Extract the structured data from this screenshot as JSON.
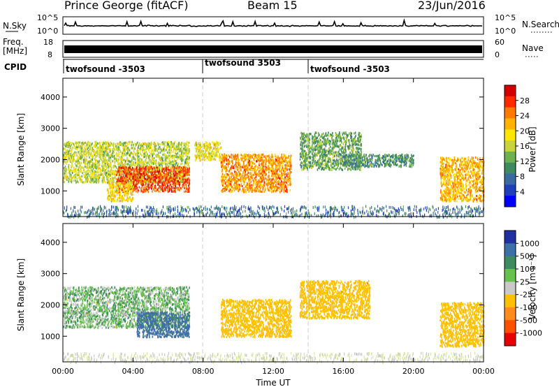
{
  "header": {
    "station": "Prince George (fitACF)",
    "beam": "Beam 15",
    "date": "23/Jun/2016"
  },
  "noise_panel": {
    "left_label": "N.Sky",
    "right_label": "N.Search",
    "left_ticks": [
      "10^5",
      "10^0"
    ],
    "right_ticks": [
      "10^5",
      "10^0"
    ]
  },
  "freq_panel": {
    "left_label_1": "Freq.",
    "left_label_2": "[MHz]",
    "right_label": "Nave",
    "left_ticks": [
      "18",
      "8"
    ],
    "right_ticks": [
      "60",
      "0"
    ]
  },
  "cpid_panel": {
    "label": "CPID",
    "segments": [
      {
        "start_hour": 0,
        "label": "twofsound -3503"
      },
      {
        "start_hour": 8,
        "label": "twofsound 3503"
      },
      {
        "start_hour": 14,
        "label": "twofsound -3503"
      }
    ]
  },
  "power_colorbar": {
    "label": "Power [dB]",
    "ticks": [
      "28",
      "24",
      "20",
      "16",
      "12",
      "8",
      "4"
    ],
    "colors": [
      "#d40000",
      "#ff2a00",
      "#ff7a00",
      "#ffb300",
      "#ffe600",
      "#c9d43c",
      "#6fb04f",
      "#3f8a5e",
      "#3a6aa0",
      "#2040b8",
      "#0000ff"
    ]
  },
  "velocity_colorbar": {
    "label": "Velocity [m s⁻¹]",
    "ticks": [
      "1000",
      "500",
      "100",
      "25",
      "-25",
      "-100",
      "-500",
      "-1000"
    ],
    "colors": [
      "#2030a0",
      "#3f6fa8",
      "#3f8a5e",
      "#66c24a",
      "#c9c9c9",
      "#ffc000",
      "#ff8a1e",
      "#ff5000",
      "#e80000"
    ]
  },
  "x_axis": {
    "label": "Time UT",
    "ticks": [
      "00:00",
      "04:00",
      "08:00",
      "12:00",
      "16:00",
      "20:00",
      "00:00"
    ]
  },
  "chart_data": [
    {
      "type": "heatmap",
      "name": "power",
      "ylabel": "Slant Range [km]",
      "xlabel": "Time UT",
      "xlim_hours": [
        0,
        24
      ],
      "ylim_km": [
        180,
        4600
      ],
      "yticks": [
        1000,
        2000,
        3000,
        4000
      ],
      "xticks": [
        "00:00",
        "04:00",
        "08:00",
        "12:00",
        "16:00",
        "20:00",
        "00:00"
      ],
      "colorbar_range_db": [
        0,
        32
      ],
      "features": [
        {
          "t_start": 0.0,
          "t_end": 7.2,
          "range_min_km": 1300,
          "range_max_km": 2600,
          "typical_db": 16
        },
        {
          "t_start": 3.0,
          "t_end": 7.2,
          "range_min_km": 1000,
          "range_max_km": 1800,
          "typical_db": 28
        },
        {
          "t_start": 2.5,
          "t_end": 4.0,
          "range_min_km": 700,
          "range_max_km": 1300,
          "typical_db": 20
        },
        {
          "t_start": 7.5,
          "t_end": 9.0,
          "range_min_km": 2000,
          "range_max_km": 2600,
          "typical_db": 18
        },
        {
          "t_start": 9.0,
          "t_end": 13.0,
          "range_min_km": 1000,
          "range_max_km": 2200,
          "typical_db": 24
        },
        {
          "t_start": 13.5,
          "t_end": 17.0,
          "range_min_km": 1700,
          "range_max_km": 2900,
          "typical_db": 12
        },
        {
          "t_start": 16.0,
          "t_end": 20.0,
          "range_min_km": 1800,
          "range_max_km": 2200,
          "typical_db": 10
        },
        {
          "t_start": 21.5,
          "t_end": 24.0,
          "range_min_km": 700,
          "range_max_km": 2100,
          "typical_db": 22
        }
      ]
    },
    {
      "type": "heatmap",
      "name": "velocity",
      "ylabel": "Slant Range [km]",
      "xlabel": "Time UT",
      "xlim_hours": [
        0,
        24
      ],
      "ylim_km": [
        180,
        4600
      ],
      "yticks": [
        1000,
        2000,
        3000,
        4000
      ],
      "xticks": [
        "00:00",
        "04:00",
        "08:00",
        "12:00",
        "16:00",
        "20:00",
        "00:00"
      ],
      "colorbar_range_m_s": [
        -1000,
        1000
      ],
      "features": [
        {
          "t_start": 0.0,
          "t_end": 7.2,
          "range_min_km": 1300,
          "range_max_km": 2600,
          "typical_ms": 0
        },
        {
          "t_start": 4.2,
          "t_end": 7.2,
          "range_min_km": 1000,
          "range_max_km": 1800,
          "typical_ms": 150
        },
        {
          "t_start": 9.0,
          "t_end": 13.0,
          "range_min_km": 1000,
          "range_max_km": 2200,
          "typical_ms": -300
        },
        {
          "t_start": 13.5,
          "t_end": 17.5,
          "range_min_km": 1600,
          "range_max_km": 2800,
          "typical_ms": -400
        },
        {
          "t_start": 21.5,
          "t_end": 24.0,
          "range_min_km": 700,
          "range_max_km": 2100,
          "typical_ms": -200
        }
      ]
    }
  ]
}
